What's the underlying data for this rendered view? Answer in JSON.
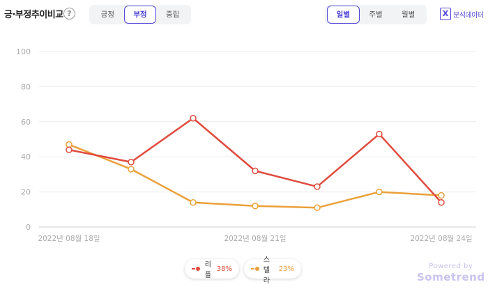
{
  "header": {
    "title": "긍·부정추이비교",
    "help_glyph": "?",
    "sentiment_tabs": [
      {
        "label": "긍정",
        "active": false
      },
      {
        "label": "부정",
        "active": true
      },
      {
        "label": "중립",
        "active": false
      }
    ],
    "period_tabs": [
      {
        "label": "일별",
        "active": true
      },
      {
        "label": "주별",
        "active": false
      },
      {
        "label": "월별",
        "active": false
      }
    ],
    "export_label": "분석데이터",
    "export_icon_glyph": "X"
  },
  "chart_data": {
    "type": "line",
    "x": [
      "2022년 08월 18일",
      "2022년 08월 19일",
      "2022년 08월 20일",
      "2022년 08월 21일",
      "2022년 08월 22일",
      "2022년 08월 23일",
      "2022년 08월 24일"
    ],
    "x_tick_labels": [
      "2022년 08월 18일",
      "2022년 08월 21일",
      "2022년 08월 24일"
    ],
    "ylim": [
      0,
      100
    ],
    "yticks": [
      0,
      20,
      40,
      60,
      80,
      100
    ],
    "grid": true,
    "series": [
      {
        "name": "리플",
        "percent": "38%",
        "color": "#e04b3e",
        "values": [
          44,
          37,
          62,
          32,
          23,
          53,
          14
        ]
      },
      {
        "name": "스텔라",
        "percent": "23%",
        "color": "#eba03a",
        "values": [
          47,
          33,
          14,
          12,
          11,
          20,
          18
        ]
      }
    ],
    "legend_position": "bottom-center"
  },
  "footer": {
    "powered_by": "Powered by",
    "brand": "Sometrend"
  }
}
